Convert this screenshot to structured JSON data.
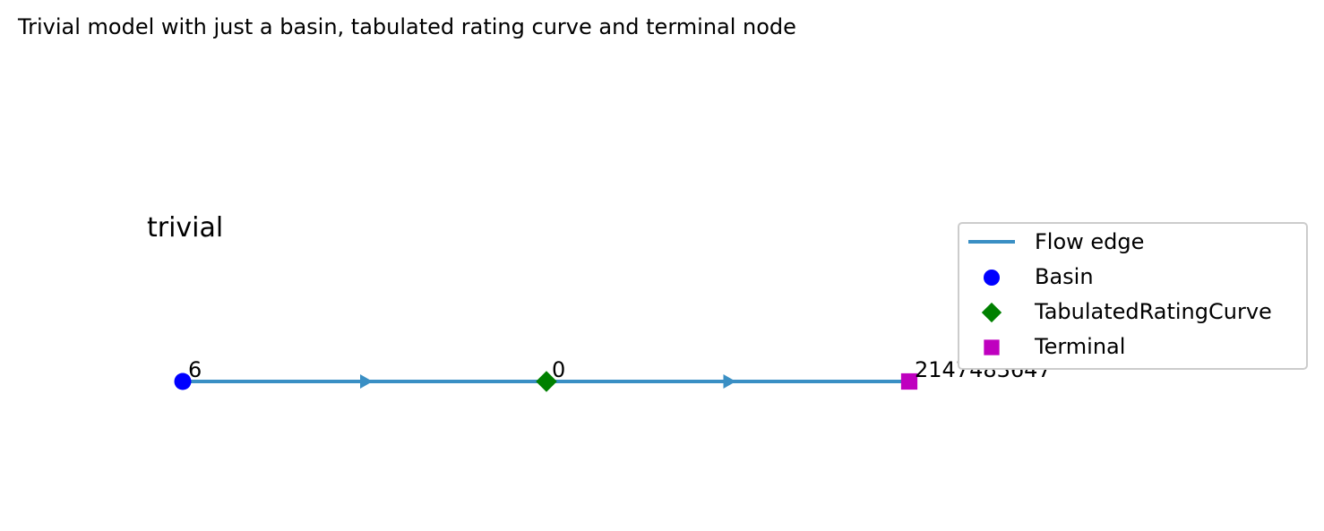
{
  "figure": {
    "title": "Trivial model with just a basin, tabulated rating curve and terminal node",
    "model_label": "trivial"
  },
  "nodes": [
    {
      "id": "6",
      "type": "Basin",
      "color": "#0000ff",
      "shape": "circle"
    },
    {
      "id": "0",
      "type": "TabulatedRatingCurve",
      "color": "#008000",
      "shape": "diamond"
    },
    {
      "id": "2147483647",
      "type": "Terminal",
      "color": "#bf00bf",
      "shape": "square"
    }
  ],
  "edges": [
    {
      "from": "6",
      "to": "0",
      "type": "Flow edge"
    },
    {
      "from": "0",
      "to": "2147483647",
      "type": "Flow edge"
    }
  ],
  "edge_color": "#3a8fc4",
  "legend": {
    "placement": "right",
    "entries": [
      {
        "label": "Flow edge",
        "symbol": "line",
        "color": "#3a8fc4"
      },
      {
        "label": "Basin",
        "symbol": "circle",
        "color": "#0000ff"
      },
      {
        "label": "TabulatedRatingCurve",
        "symbol": "diamond",
        "color": "#008000"
      },
      {
        "label": "Terminal",
        "symbol": "square",
        "color": "#bf00bf"
      }
    ]
  }
}
